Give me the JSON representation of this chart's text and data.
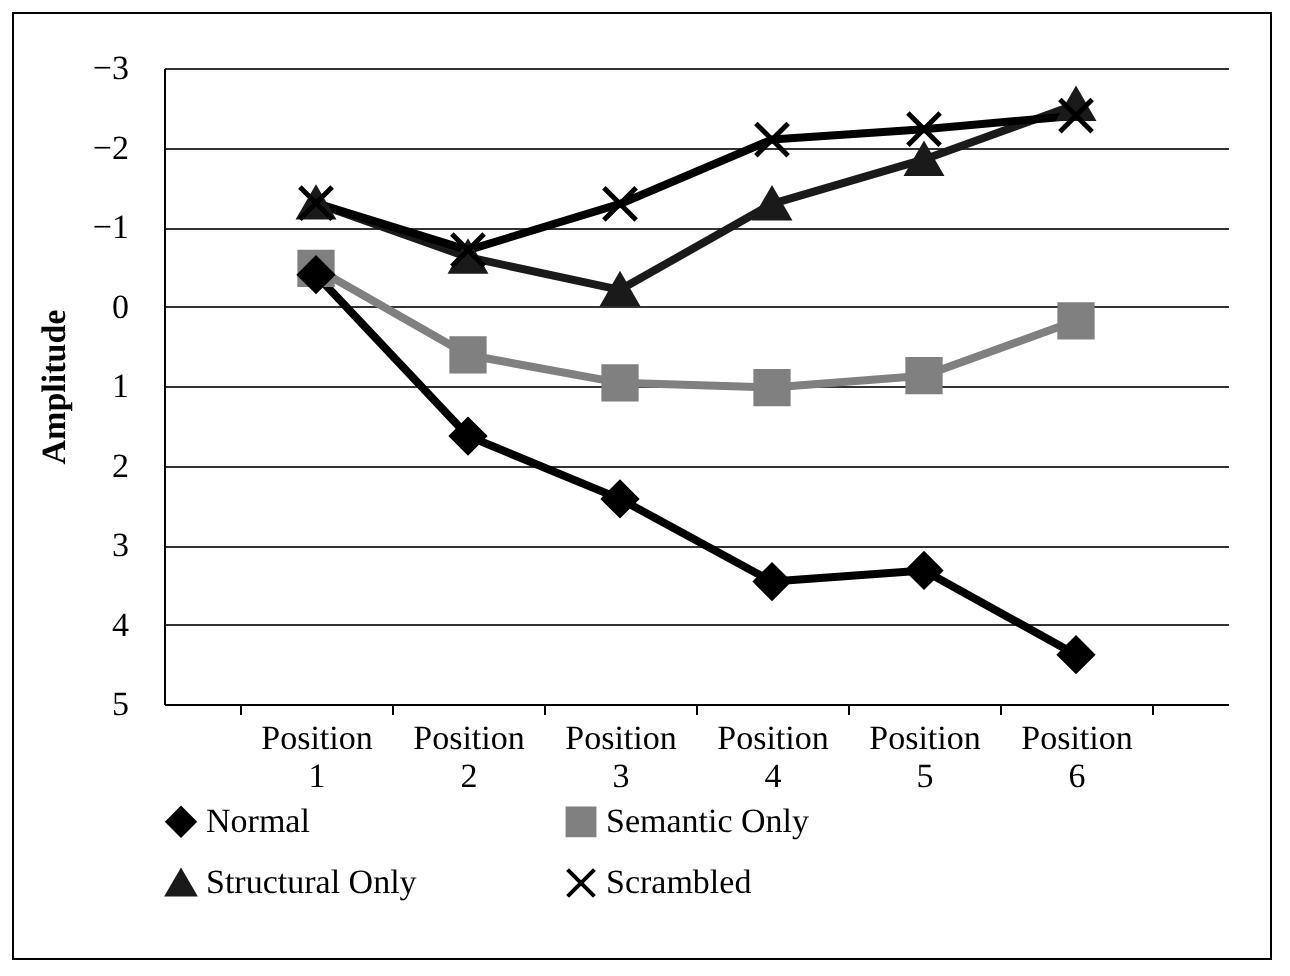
{
  "chart_data": {
    "type": "line",
    "ylabel": "Amplitude",
    "categories": [
      "Position 1",
      "Position 2",
      "Position 3",
      "Position 4",
      "Position 5",
      "Position 6"
    ],
    "series": [
      {
        "name": "Normal",
        "color": "#000000",
        "marker": "diamond",
        "values": [
          -0.4,
          1.63,
          2.42,
          3.46,
          3.32,
          4.38
        ]
      },
      {
        "name": "Semantic Only",
        "color": "#808080",
        "marker": "square",
        "values": [
          -0.48,
          0.61,
          0.96,
          1.02,
          0.87,
          0.18
        ]
      },
      {
        "name": "Structural Only",
        "color": "#1a1a1a",
        "marker": "triangle",
        "values": [
          -1.3,
          -0.62,
          -0.21,
          -1.29,
          -1.85,
          -2.54
        ]
      },
      {
        "name": "Scrambled",
        "color": "#000000",
        "marker": "cross",
        "values": [
          -1.3,
          -0.71,
          -1.29,
          -2.1,
          -2.23,
          -2.4
        ]
      }
    ],
    "ylim": [
      5,
      -3
    ],
    "yticks": [
      -3,
      -2,
      -1,
      0,
      1,
      2,
      3,
      4,
      5
    ],
    "grid": "y",
    "legend": "bottom",
    "line_style": "solid"
  }
}
